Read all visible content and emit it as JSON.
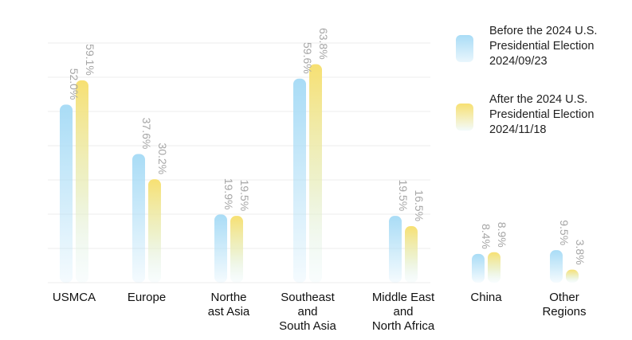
{
  "colors": {
    "series_before": "#a8dcf5",
    "series_after": "#f5e06e",
    "label": "#a6a6a6",
    "axis_text": "#111111",
    "grid": "#eeeeee"
  },
  "legend": [
    {
      "lines": [
        "Before the 2024 U.S.",
        "Presidential Election",
        "2024/09/23"
      ]
    },
    {
      "lines": [
        "After the 2024 U.S.",
        "Presidential Election",
        "2024/11/18"
      ]
    }
  ],
  "chart_data": {
    "type": "bar",
    "categories": [
      [
        "USMCA"
      ],
      [
        "Europe"
      ],
      [
        "Northe",
        "ast Asia"
      ],
      [
        "Southeast",
        "and",
        "South Asia"
      ],
      [
        "Middle East",
        "and",
        "North Africa"
      ],
      [
        "China"
      ],
      [
        "Other",
        "Regions"
      ]
    ],
    "series": [
      {
        "name": "Before the 2024 U.S. Presidential Election 2024/09/23",
        "values": [
          52.0,
          37.6,
          19.9,
          59.6,
          19.5,
          8.4,
          9.5
        ],
        "labels": [
          "52.0%",
          "37.6%",
          "19.9%",
          "59.6%",
          "19.5%",
          "8.4%",
          "9.5%"
        ]
      },
      {
        "name": "After the 2024 U.S. Presidential Election 2024/11/18",
        "values": [
          59.1,
          30.2,
          19.5,
          63.8,
          16.5,
          8.9,
          3.8
        ],
        "labels": [
          "59.1%",
          "30.2%",
          "19.5%",
          "63.8%",
          "16.5%",
          "8.9%",
          "3.8%"
        ]
      }
    ],
    "ylim": [
      0,
      70
    ],
    "grid": true,
    "legend_position": "top-right",
    "title": "",
    "xlabel": "",
    "ylabel": ""
  }
}
